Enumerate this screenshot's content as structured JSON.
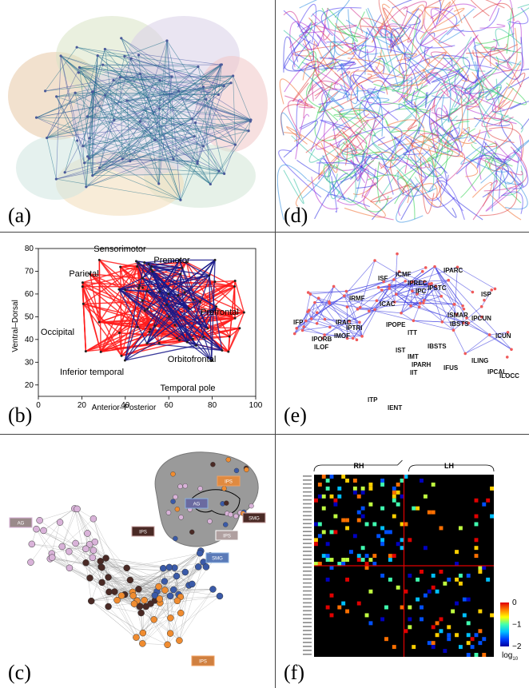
{
  "panel_labels": {
    "a": "(a)",
    "b": "(b)",
    "c": "(c)",
    "d": "(d)",
    "e": "(e)",
    "f": "(f)"
  },
  "panel_b": {
    "xlabel": "Anterior–Posterior",
    "ylabel": "Ventral–Dorsal",
    "x_ticks": [
      "0",
      "20",
      "40",
      "60",
      "80",
      "100"
    ],
    "y_ticks": [
      "20",
      "30",
      "40",
      "50",
      "60",
      "70",
      "80"
    ],
    "regions": [
      "Sensorimotor",
      "Premotor",
      "Parietal",
      "Prefrontal",
      "Occipital",
      "Inferior temporal",
      "Orbitofrontal",
      "Temporal pole"
    ],
    "colors": {
      "edges_a": "#ff1a1a",
      "edges_b": "#1a1a8a"
    }
  },
  "panel_c": {
    "labels": [
      "AG",
      "IPS",
      "SMG",
      "IPS",
      "AG",
      "IPS",
      "SMG",
      "IPS"
    ],
    "colors": {
      "ag": "#d9b3d9",
      "ips": "#4a2a25",
      "smg": "#3a5aa8",
      "orange": "#f08c30"
    }
  },
  "panel_e": {
    "nodes": [
      "lSF",
      "lCMF",
      "lPARC",
      "lPREC",
      "lPC",
      "lPSTC",
      "lSP",
      "lRMF",
      "lCAC",
      "lSMAR",
      "lBSTS",
      "lPCUN",
      "lFP",
      "lRAC",
      "lPOPE",
      "lPTRI",
      "lMOF",
      "lPORB",
      "lLOF",
      "lTT",
      "lST",
      "lBSTS",
      "lCUN",
      "lMT",
      "lPARH",
      "lIT",
      "lFUS",
      "lLING",
      "lPCAL",
      "lLOCC",
      "lTP",
      "lENT"
    ]
  },
  "panel_f": {
    "header_left": "RH",
    "header_right": "LH",
    "colorbar_ticks": [
      "0",
      "−1",
      "−2"
    ],
    "colorbar_unit": "log",
    "colorbar_unit_sub": "10"
  }
}
